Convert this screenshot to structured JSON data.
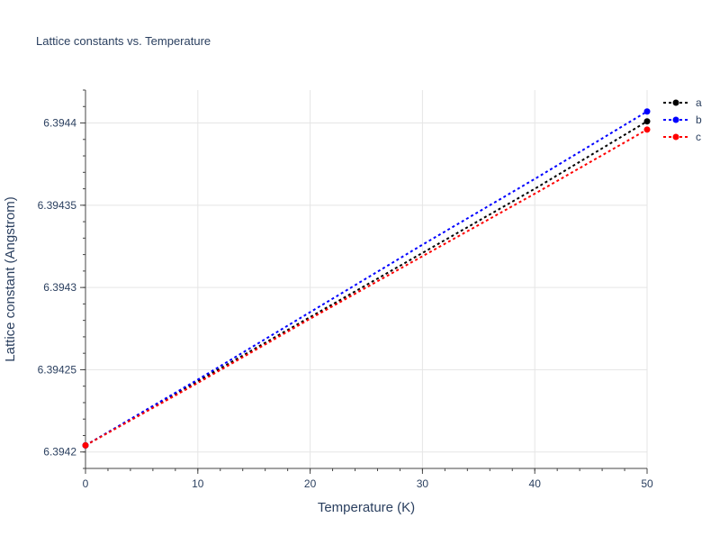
{
  "chart_data": {
    "type": "line",
    "title": "Lattice constants vs. Temperature",
    "xlabel": "Temperature (K)",
    "ylabel": "Lattice constant (Angstrom)",
    "xlim": [
      0,
      50
    ],
    "ylim": [
      6.39419,
      6.39442
    ],
    "x_ticks": [
      0,
      10,
      20,
      30,
      40,
      50
    ],
    "x_minor_ticks": [
      0,
      2,
      4,
      6,
      8,
      10,
      12,
      14,
      16,
      18,
      20,
      22,
      24,
      26,
      28,
      30,
      32,
      34,
      36,
      38,
      40,
      42,
      44,
      46,
      48,
      50
    ],
    "y_ticks": [
      6.3942,
      6.39425,
      6.3943,
      6.39435,
      6.3944
    ],
    "y_tick_labels": [
      "6.3942",
      "6.39425",
      "6.3943",
      "6.39435",
      "6.3944"
    ],
    "y_minor_ticks": [
      6.39419,
      6.3942,
      6.39421,
      6.39422,
      6.39423,
      6.39424,
      6.39425,
      6.39426,
      6.39427,
      6.39428,
      6.39429,
      6.3943,
      6.39431,
      6.39432,
      6.39433,
      6.39434,
      6.39435,
      6.39436,
      6.39437,
      6.39438,
      6.39439,
      6.3944,
      6.39441,
      6.39442
    ],
    "grid": true,
    "legend_position": "top-right",
    "series": [
      {
        "name": "a",
        "color": "#000000",
        "x": [
          0,
          10,
          20,
          30,
          40,
          50
        ],
        "y": [
          6.394204,
          6.394243,
          6.394282,
          6.394321,
          6.39436,
          6.394401
        ]
      },
      {
        "name": "b",
        "color": "#0000ff",
        "x": [
          0,
          10,
          20,
          30,
          40,
          50
        ],
        "y": [
          6.394204,
          6.394244,
          6.394285,
          6.394326,
          6.394366,
          6.394407
        ]
      },
      {
        "name": "c",
        "color": "#ff0000",
        "x": [
          0,
          10,
          20,
          30,
          40,
          50
        ],
        "y": [
          6.394204,
          6.394242,
          6.394281,
          6.394319,
          6.394357,
          6.394396
        ]
      }
    ]
  }
}
